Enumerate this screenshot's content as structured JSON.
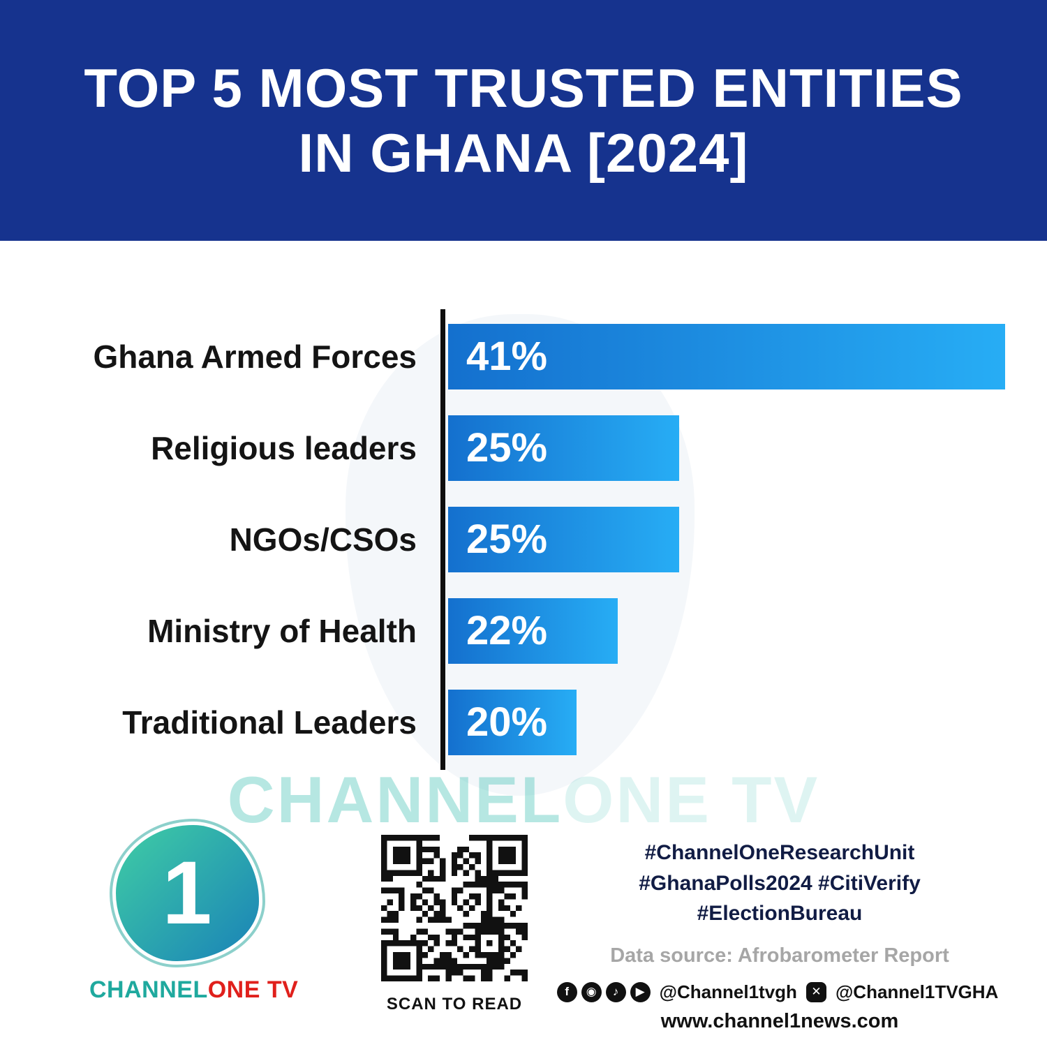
{
  "header": {
    "title_line1": "TOP 5 MOST TRUSTED ENTITIES",
    "title_line2": "IN GHANA [2024]"
  },
  "chart_data": {
    "type": "bar",
    "orientation": "horizontal",
    "title": "Top 5 Most Trusted Entities in Ghana [2024]",
    "categories": [
      "Ghana Armed Forces",
      "Religious leaders",
      "NGOs/CSOs",
      "Ministry of Health",
      "Traditional Leaders"
    ],
    "values": [
      41,
      25,
      25,
      22,
      20
    ],
    "value_suffix": "%",
    "bar_display_pct": [
      100,
      41.5,
      41.5,
      30.5,
      23
    ],
    "xlabel": "",
    "ylabel": "",
    "grid": false,
    "legend": false,
    "axis": "single vertical black baseline on left"
  },
  "watermark": {
    "part1": "CHANNEL",
    "part2": "ONE TV"
  },
  "logo": {
    "numeral": "1",
    "text_part1": "CHANNEL",
    "text_part2": "ONE TV"
  },
  "qr": {
    "label": "SCAN TO READ"
  },
  "footer": {
    "hashtags_line1": "#ChannelOneResearchUnit",
    "hashtags_line2": "#GhanaPolls2024 #CitiVerify",
    "hashtags_line3": "#ElectionBureau",
    "data_source": "Data source: Afrobarometer Report",
    "social_icons": [
      "facebook-icon",
      "instagram-icon",
      "tiktok-icon",
      "youtube-icon"
    ],
    "social_handle_1": "@Channel1tvgh",
    "social_handle_2": "@Channel1TVGHA",
    "website": "www.channel1news.com"
  },
  "colors": {
    "header_blue": "#16338E",
    "bar_gradient_start": "#1470CE",
    "bar_gradient_end": "#27ADF5",
    "teal": "#1FA99E",
    "red": "#E0201C",
    "hashtag_navy": "#111C44",
    "source_gray": "#A6A6A6"
  }
}
